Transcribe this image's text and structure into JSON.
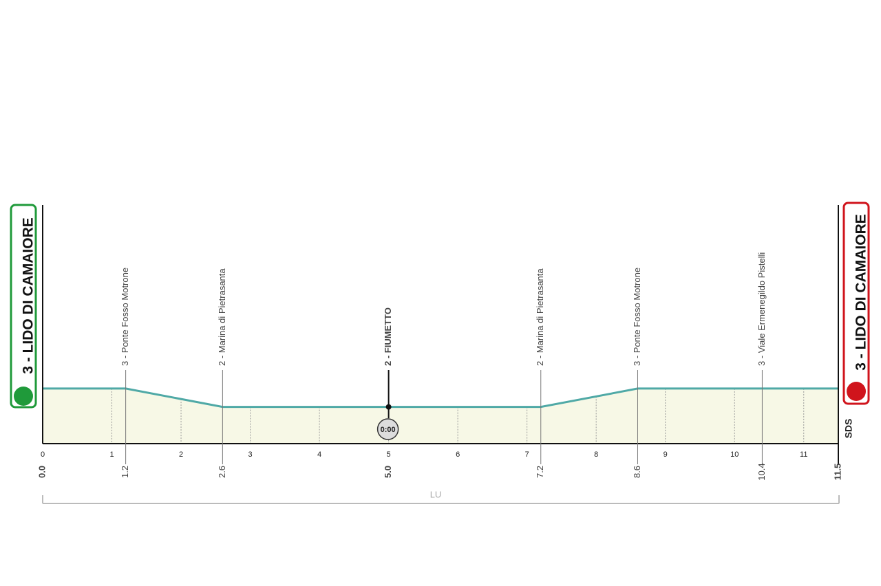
{
  "chart_data": {
    "type": "area",
    "x": [
      0,
      1.2,
      2.6,
      5,
      7.2,
      8.6,
      10.4,
      11.5
    ],
    "x_labels": [
      "0.0",
      "1.2",
      "2.6",
      "5.0",
      "7.2",
      "8.6",
      "10.4",
      "11.5"
    ],
    "labels": [
      "3 - LIDO DI CAMAIORE",
      "3 - Ponte Fosso Motrone",
      "2 - Marina di Pietrasanta",
      "2 - FIUMETTO",
      "2 - Marina di Pietrasanta",
      "3 - Ponte Fosso Motrone",
      "3 - Viale Ermenegildo Pistelli",
      "3 - LIDO DI CAMAIORE"
    ],
    "values": [
      3,
      3,
      2,
      2,
      2,
      3,
      3,
      3
    ],
    "xlim": [
      0,
      11.5
    ],
    "ylim": [
      0,
      13
    ],
    "xticks": [
      0,
      1,
      2,
      3,
      4,
      5,
      6,
      7,
      8,
      9,
      10,
      11
    ],
    "time_check": "0:00",
    "province": "LU",
    "logo": "SDS",
    "color": "#4fa9a6",
    "fill_color": "#f7f8e6"
  }
}
